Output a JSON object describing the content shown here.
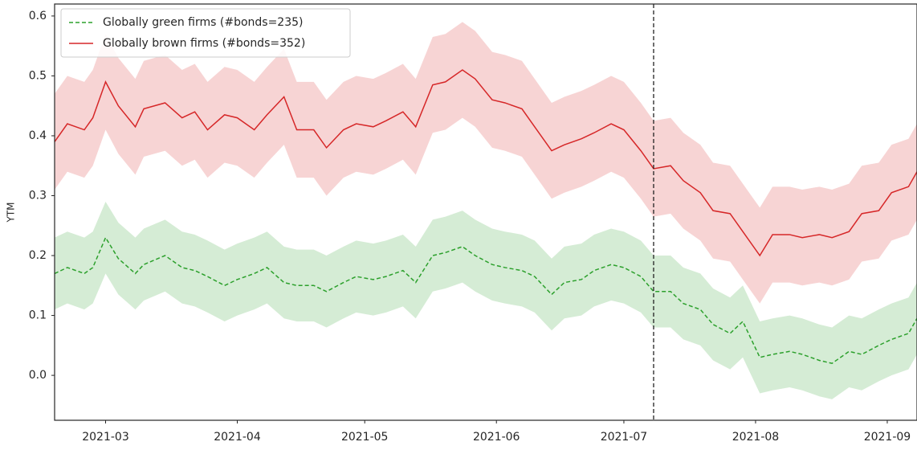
{
  "chart_data": {
    "type": "line",
    "ylabel": "YTM",
    "x": [
      "2021-02-17",
      "2021-02-20",
      "2021-02-24",
      "2021-02-26",
      "2021-03-01",
      "2021-03-04",
      "2021-03-08",
      "2021-03-10",
      "2021-03-15",
      "2021-03-19",
      "2021-03-22",
      "2021-03-25",
      "2021-03-29",
      "2021-04-01",
      "2021-04-05",
      "2021-04-08",
      "2021-04-12",
      "2021-04-15",
      "2021-04-19",
      "2021-04-22",
      "2021-04-26",
      "2021-04-29",
      "2021-05-03",
      "2021-05-06",
      "2021-05-10",
      "2021-05-13",
      "2021-05-17",
      "2021-05-20",
      "2021-05-24",
      "2021-05-27",
      "2021-05-31",
      "2021-06-03",
      "2021-06-07",
      "2021-06-10",
      "2021-06-14",
      "2021-06-17",
      "2021-06-21",
      "2021-06-24",
      "2021-06-28",
      "2021-07-01",
      "2021-07-05",
      "2021-07-08",
      "2021-07-12",
      "2021-07-15",
      "2021-07-19",
      "2021-07-22",
      "2021-07-26",
      "2021-07-29",
      "2021-08-02",
      "2021-08-05",
      "2021-08-09",
      "2021-08-12",
      "2021-08-16",
      "2021-08-19",
      "2021-08-23",
      "2021-08-26",
      "2021-08-30",
      "2021-09-02",
      "2021-09-06",
      "2021-09-08"
    ],
    "series": [
      {
        "name": "Globally green firms (#bonds=235)",
        "color": "#2ca02c",
        "dash": true,
        "values": [
          0.17,
          0.18,
          0.17,
          0.18,
          0.23,
          0.195,
          0.17,
          0.185,
          0.2,
          0.18,
          0.175,
          0.165,
          0.15,
          0.16,
          0.17,
          0.18,
          0.155,
          0.15,
          0.15,
          0.14,
          0.155,
          0.165,
          0.16,
          0.165,
          0.175,
          0.155,
          0.2,
          0.205,
          0.215,
          0.2,
          0.185,
          0.18,
          0.175,
          0.165,
          0.135,
          0.155,
          0.16,
          0.175,
          0.185,
          0.18,
          0.165,
          0.14,
          0.14,
          0.12,
          0.11,
          0.085,
          0.07,
          0.09,
          0.03,
          0.035,
          0.04,
          0.035,
          0.025,
          0.02,
          0.04,
          0.035,
          0.05,
          0.06,
          0.07,
          0.095
        ],
        "lower": [
          0.11,
          0.12,
          0.11,
          0.12,
          0.17,
          0.135,
          0.11,
          0.125,
          0.14,
          0.12,
          0.115,
          0.105,
          0.09,
          0.1,
          0.11,
          0.12,
          0.095,
          0.09,
          0.09,
          0.08,
          0.095,
          0.105,
          0.1,
          0.105,
          0.115,
          0.095,
          0.14,
          0.145,
          0.155,
          0.14,
          0.125,
          0.12,
          0.115,
          0.105,
          0.075,
          0.095,
          0.1,
          0.115,
          0.125,
          0.12,
          0.105,
          0.08,
          0.08,
          0.06,
          0.05,
          0.025,
          0.01,
          0.03,
          -0.03,
          -0.025,
          -0.02,
          -0.025,
          -0.035,
          -0.04,
          -0.02,
          -0.025,
          -0.01,
          0,
          0.01,
          0.035
        ],
        "upper": [
          0.23,
          0.24,
          0.23,
          0.24,
          0.29,
          0.255,
          0.23,
          0.245,
          0.26,
          0.24,
          0.235,
          0.225,
          0.21,
          0.22,
          0.23,
          0.24,
          0.215,
          0.21,
          0.21,
          0.2,
          0.215,
          0.225,
          0.22,
          0.225,
          0.235,
          0.215,
          0.26,
          0.265,
          0.275,
          0.26,
          0.245,
          0.24,
          0.235,
          0.225,
          0.195,
          0.215,
          0.22,
          0.235,
          0.245,
          0.24,
          0.225,
          0.2,
          0.2,
          0.18,
          0.17,
          0.145,
          0.13,
          0.15,
          0.09,
          0.095,
          0.1,
          0.095,
          0.085,
          0.08,
          0.1,
          0.095,
          0.11,
          0.12,
          0.13,
          0.155
        ]
      },
      {
        "name": "Globally brown firms (#bonds=352)",
        "color": "#d62728",
        "dash": false,
        "values": [
          0.39,
          0.42,
          0.41,
          0.43,
          0.49,
          0.45,
          0.415,
          0.445,
          0.455,
          0.43,
          0.44,
          0.41,
          0.435,
          0.43,
          0.41,
          0.435,
          0.465,
          0.41,
          0.41,
          0.38,
          0.41,
          0.42,
          0.415,
          0.425,
          0.44,
          0.415,
          0.485,
          0.49,
          0.51,
          0.495,
          0.46,
          0.455,
          0.445,
          0.415,
          0.375,
          0.385,
          0.395,
          0.405,
          0.42,
          0.41,
          0.375,
          0.345,
          0.35,
          0.325,
          0.305,
          0.275,
          0.27,
          0.24,
          0.2,
          0.235,
          0.235,
          0.23,
          0.235,
          0.23,
          0.24,
          0.27,
          0.275,
          0.305,
          0.315,
          0.34
        ],
        "lower": [
          0.31,
          0.34,
          0.33,
          0.35,
          0.41,
          0.37,
          0.335,
          0.365,
          0.375,
          0.35,
          0.36,
          0.33,
          0.355,
          0.35,
          0.33,
          0.355,
          0.385,
          0.33,
          0.33,
          0.3,
          0.33,
          0.34,
          0.335,
          0.345,
          0.36,
          0.335,
          0.405,
          0.41,
          0.43,
          0.415,
          0.38,
          0.375,
          0.365,
          0.335,
          0.295,
          0.305,
          0.315,
          0.325,
          0.34,
          0.33,
          0.295,
          0.265,
          0.27,
          0.245,
          0.225,
          0.195,
          0.19,
          0.16,
          0.12,
          0.155,
          0.155,
          0.15,
          0.155,
          0.15,
          0.16,
          0.19,
          0.195,
          0.225,
          0.235,
          0.26
        ],
        "upper": [
          0.47,
          0.5,
          0.49,
          0.51,
          0.57,
          0.53,
          0.495,
          0.525,
          0.535,
          0.51,
          0.52,
          0.49,
          0.515,
          0.51,
          0.49,
          0.515,
          0.545,
          0.49,
          0.49,
          0.46,
          0.49,
          0.5,
          0.495,
          0.505,
          0.52,
          0.495,
          0.565,
          0.57,
          0.59,
          0.575,
          0.54,
          0.535,
          0.525,
          0.495,
          0.455,
          0.465,
          0.475,
          0.485,
          0.5,
          0.49,
          0.455,
          0.425,
          0.43,
          0.405,
          0.385,
          0.355,
          0.35,
          0.32,
          0.28,
          0.315,
          0.315,
          0.31,
          0.315,
          0.31,
          0.32,
          0.35,
          0.355,
          0.385,
          0.395,
          0.42
        ]
      }
    ],
    "xlim": [
      "2021-02-17",
      "2021-09-08"
    ],
    "xticks": [
      {
        "value": "2021-03-01",
        "label": "2021-03"
      },
      {
        "value": "2021-04-01",
        "label": "2021-04"
      },
      {
        "value": "2021-05-01",
        "label": "2021-05"
      },
      {
        "value": "2021-06-01",
        "label": "2021-06"
      },
      {
        "value": "2021-07-01",
        "label": "2021-07"
      },
      {
        "value": "2021-08-01",
        "label": "2021-08"
      },
      {
        "value": "2021-09-01",
        "label": "2021-09"
      }
    ],
    "ylim": [
      -0.075,
      0.62
    ],
    "yticks": [
      {
        "value": 0,
        "label": "0.0"
      },
      0.1,
      0.2,
      0.3,
      0.4,
      0.5,
      0.6
    ],
    "vline": "2021-07-08",
    "legend": "upper left",
    "grid": false
  }
}
